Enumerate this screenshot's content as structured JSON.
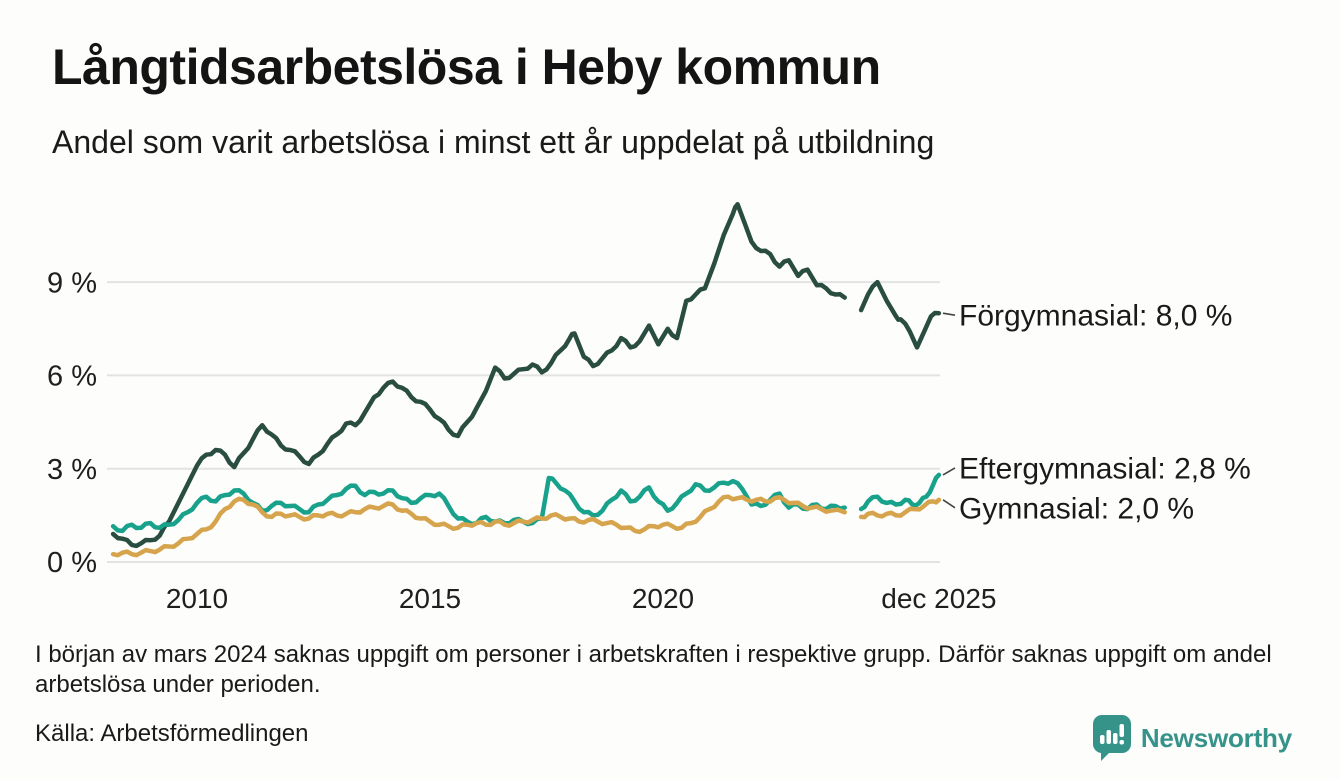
{
  "title": "Långtidsarbetslösa i Heby kommun",
  "subtitle": "Andel som varit arbetslösa i minst ett år uppdelat på utbildning",
  "footnote": "I början av mars 2024 saknas uppgift om personer i arbetskraften i respektive grupp. Därför saknas uppgift om andel arbetslösa under perioden.",
  "source": "Källa: Arbetsförmedlingen",
  "branding": {
    "logo_text": "Newsworthy",
    "logo_icon": "speech-bubble-bar-chart-icon",
    "logo_color": "#35938a"
  },
  "chart_data": {
    "type": "line",
    "title": "Långtidsarbetslösa i Heby kommun",
    "subtitle": "Andel som varit arbetslösa i minst ett år uppdelat på utbildning",
    "unit": "%",
    "grid": "horizontal",
    "legend_position": "right-end-labels",
    "gap_period": "mars 2024",
    "x_axis": {
      "range_years": [
        2008.2,
        2025.92
      ],
      "ticks": [
        {
          "year": 2010,
          "label": "2010"
        },
        {
          "year": 2015,
          "label": "2015"
        },
        {
          "year": 2020,
          "label": "2020"
        },
        {
          "year": 2025.92,
          "label": "dec 2025"
        }
      ]
    },
    "y_axis": {
      "range": [
        0,
        12
      ],
      "ticks": [
        {
          "value": 0,
          "label": "0 %"
        },
        {
          "value": 3,
          "label": "3 %"
        },
        {
          "value": 6,
          "label": "6 %"
        },
        {
          "value": 9,
          "label": "9 %"
        }
      ]
    },
    "series": [
      {
        "id": "forgymnasial",
        "name": "Förgymnasial",
        "end_label": "Förgymnasial: 8,0 %",
        "end_value": 8.0,
        "color": "#2a4d41",
        "points": [
          [
            2008.2,
            0.9
          ],
          [
            2008.4,
            0.75
          ],
          [
            2008.6,
            0.55
          ],
          [
            2008.8,
            0.6
          ],
          [
            2009.0,
            0.7
          ],
          [
            2009.2,
            0.85
          ],
          [
            2009.4,
            1.3
          ],
          [
            2009.6,
            1.9
          ],
          [
            2009.8,
            2.5
          ],
          [
            2010.0,
            3.1
          ],
          [
            2010.2,
            3.45
          ],
          [
            2010.4,
            3.6
          ],
          [
            2010.6,
            3.45
          ],
          [
            2010.8,
            3.05
          ],
          [
            2011.0,
            3.5
          ],
          [
            2011.2,
            3.95
          ],
          [
            2011.4,
            4.4
          ],
          [
            2011.6,
            4.1
          ],
          [
            2011.8,
            3.75
          ],
          [
            2012.0,
            3.6
          ],
          [
            2012.2,
            3.4
          ],
          [
            2012.4,
            3.15
          ],
          [
            2012.6,
            3.45
          ],
          [
            2012.8,
            3.8
          ],
          [
            2013.0,
            4.1
          ],
          [
            2013.2,
            4.45
          ],
          [
            2013.4,
            4.4
          ],
          [
            2013.6,
            4.8
          ],
          [
            2013.8,
            5.3
          ],
          [
            2014.0,
            5.6
          ],
          [
            2014.2,
            5.8
          ],
          [
            2014.4,
            5.6
          ],
          [
            2014.6,
            5.3
          ],
          [
            2014.8,
            5.15
          ],
          [
            2015.0,
            4.9
          ],
          [
            2015.2,
            4.6
          ],
          [
            2015.4,
            4.25
          ],
          [
            2015.6,
            4.05
          ],
          [
            2015.8,
            4.5
          ],
          [
            2016.0,
            4.95
          ],
          [
            2016.2,
            5.5
          ],
          [
            2016.4,
            6.25
          ],
          [
            2016.6,
            5.9
          ],
          [
            2016.8,
            6.05
          ],
          [
            2017.0,
            6.2
          ],
          [
            2017.2,
            6.35
          ],
          [
            2017.4,
            6.1
          ],
          [
            2017.6,
            6.4
          ],
          [
            2017.8,
            6.8
          ],
          [
            2018.0,
            7.2
          ],
          [
            2018.1,
            7.35
          ],
          [
            2018.3,
            6.6
          ],
          [
            2018.5,
            6.3
          ],
          [
            2018.7,
            6.55
          ],
          [
            2018.9,
            6.8
          ],
          [
            2019.1,
            7.2
          ],
          [
            2019.3,
            6.9
          ],
          [
            2019.5,
            7.1
          ],
          [
            2019.7,
            7.6
          ],
          [
            2019.9,
            7.0
          ],
          [
            2020.1,
            7.5
          ],
          [
            2020.3,
            7.2
          ],
          [
            2020.5,
            8.4
          ],
          [
            2020.7,
            8.6
          ],
          [
            2020.9,
            8.8
          ],
          [
            2021.1,
            9.6
          ],
          [
            2021.3,
            10.5
          ],
          [
            2021.5,
            11.2
          ],
          [
            2021.6,
            11.5
          ],
          [
            2021.75,
            10.9
          ],
          [
            2021.9,
            10.3
          ],
          [
            2022.1,
            10.0
          ],
          [
            2022.3,
            9.9
          ],
          [
            2022.5,
            9.5
          ],
          [
            2022.7,
            9.7
          ],
          [
            2022.9,
            9.2
          ],
          [
            2023.1,
            9.4
          ],
          [
            2023.3,
            8.9
          ],
          [
            2023.5,
            8.8
          ],
          [
            2023.7,
            8.6
          ],
          [
            2023.9,
            8.5
          ],
          [
            2024.05,
            null
          ],
          [
            2024.25,
            8.1
          ],
          [
            2024.4,
            8.6
          ],
          [
            2024.6,
            9.0
          ],
          [
            2024.8,
            8.4
          ],
          [
            2025.0,
            7.9
          ],
          [
            2025.1,
            7.8
          ],
          [
            2025.3,
            7.4
          ],
          [
            2025.45,
            6.9
          ],
          [
            2025.6,
            7.4
          ],
          [
            2025.75,
            7.9
          ],
          [
            2025.92,
            8.0
          ]
        ]
      },
      {
        "id": "eftergymnasial",
        "name": "Eftergymnasial",
        "end_label": "Eftergymnasial: 2,8 %",
        "end_value": 2.8,
        "color": "#18a28b",
        "points": [
          [
            2008.2,
            1.15
          ],
          [
            2008.4,
            1.0
          ],
          [
            2008.6,
            1.2
          ],
          [
            2008.8,
            1.1
          ],
          [
            2009.0,
            1.25
          ],
          [
            2009.2,
            1.1
          ],
          [
            2009.4,
            1.2
          ],
          [
            2009.6,
            1.35
          ],
          [
            2009.8,
            1.6
          ],
          [
            2010.0,
            1.9
          ],
          [
            2010.2,
            2.1
          ],
          [
            2010.4,
            1.95
          ],
          [
            2010.6,
            2.15
          ],
          [
            2010.8,
            2.3
          ],
          [
            2011.0,
            2.2
          ],
          [
            2011.2,
            1.9
          ],
          [
            2011.4,
            1.65
          ],
          [
            2011.6,
            1.8
          ],
          [
            2011.8,
            1.9
          ],
          [
            2012.0,
            1.8
          ],
          [
            2012.2,
            1.7
          ],
          [
            2012.4,
            1.6
          ],
          [
            2012.6,
            1.85
          ],
          [
            2012.8,
            2.0
          ],
          [
            2013.0,
            2.15
          ],
          [
            2013.2,
            2.35
          ],
          [
            2013.4,
            2.45
          ],
          [
            2013.6,
            2.15
          ],
          [
            2013.8,
            2.25
          ],
          [
            2014.0,
            2.2
          ],
          [
            2014.2,
            2.3
          ],
          [
            2014.4,
            2.05
          ],
          [
            2014.6,
            1.9
          ],
          [
            2014.8,
            2.05
          ],
          [
            2015.0,
            2.15
          ],
          [
            2015.2,
            2.2
          ],
          [
            2015.4,
            1.8
          ],
          [
            2015.6,
            1.4
          ],
          [
            2015.8,
            1.3
          ],
          [
            2016.0,
            1.25
          ],
          [
            2016.2,
            1.45
          ],
          [
            2016.4,
            1.3
          ],
          [
            2016.6,
            1.25
          ],
          [
            2016.8,
            1.35
          ],
          [
            2017.0,
            1.3
          ],
          [
            2017.2,
            1.25
          ],
          [
            2017.4,
            1.4
          ],
          [
            2017.55,
            2.7
          ],
          [
            2017.7,
            2.55
          ],
          [
            2017.9,
            2.3
          ],
          [
            2018.1,
            1.95
          ],
          [
            2018.3,
            1.6
          ],
          [
            2018.5,
            1.5
          ],
          [
            2018.7,
            1.65
          ],
          [
            2018.9,
            2.0
          ],
          [
            2019.1,
            2.3
          ],
          [
            2019.3,
            1.95
          ],
          [
            2019.5,
            2.1
          ],
          [
            2019.7,
            2.4
          ],
          [
            2019.9,
            1.95
          ],
          [
            2020.1,
            1.65
          ],
          [
            2020.3,
            1.9
          ],
          [
            2020.5,
            2.2
          ],
          [
            2020.7,
            2.5
          ],
          [
            2020.9,
            2.3
          ],
          [
            2021.1,
            2.4
          ],
          [
            2021.3,
            2.55
          ],
          [
            2021.5,
            2.6
          ],
          [
            2021.7,
            2.35
          ],
          [
            2021.9,
            1.85
          ],
          [
            2022.1,
            1.8
          ],
          [
            2022.3,
            2.0
          ],
          [
            2022.5,
            2.2
          ],
          [
            2022.7,
            1.75
          ],
          [
            2022.9,
            1.85
          ],
          [
            2023.1,
            1.7
          ],
          [
            2023.3,
            1.85
          ],
          [
            2023.5,
            1.7
          ],
          [
            2023.7,
            1.8
          ],
          [
            2023.9,
            1.75
          ],
          [
            2024.05,
            null
          ],
          [
            2024.25,
            1.7
          ],
          [
            2024.4,
            1.95
          ],
          [
            2024.6,
            2.1
          ],
          [
            2024.8,
            1.9
          ],
          [
            2025.0,
            1.85
          ],
          [
            2025.2,
            2.0
          ],
          [
            2025.35,
            1.85
          ],
          [
            2025.5,
            1.9
          ],
          [
            2025.65,
            2.1
          ],
          [
            2025.8,
            2.5
          ],
          [
            2025.92,
            2.8
          ]
        ]
      },
      {
        "id": "gymnasial",
        "name": "Gymnasial",
        "end_label": "Gymnasial: 2,0 %",
        "end_value": 2.0,
        "color": "#d6a44c",
        "points": [
          [
            2008.2,
            0.25
          ],
          [
            2008.4,
            0.3
          ],
          [
            2008.6,
            0.25
          ],
          [
            2008.8,
            0.3
          ],
          [
            2009.0,
            0.35
          ],
          [
            2009.2,
            0.4
          ],
          [
            2009.4,
            0.5
          ],
          [
            2009.6,
            0.6
          ],
          [
            2009.8,
            0.75
          ],
          [
            2010.0,
            0.9
          ],
          [
            2010.2,
            1.05
          ],
          [
            2010.4,
            1.3
          ],
          [
            2010.6,
            1.7
          ],
          [
            2010.8,
            1.95
          ],
          [
            2011.0,
            2.0
          ],
          [
            2011.2,
            1.85
          ],
          [
            2011.4,
            1.6
          ],
          [
            2011.6,
            1.45
          ],
          [
            2011.8,
            1.55
          ],
          [
            2012.0,
            1.5
          ],
          [
            2012.2,
            1.45
          ],
          [
            2012.4,
            1.4
          ],
          [
            2012.6,
            1.5
          ],
          [
            2012.8,
            1.55
          ],
          [
            2013.0,
            1.5
          ],
          [
            2013.2,
            1.55
          ],
          [
            2013.4,
            1.6
          ],
          [
            2013.6,
            1.7
          ],
          [
            2013.8,
            1.75
          ],
          [
            2014.0,
            1.8
          ],
          [
            2014.2,
            1.85
          ],
          [
            2014.4,
            1.65
          ],
          [
            2014.6,
            1.55
          ],
          [
            2014.8,
            1.4
          ],
          [
            2015.0,
            1.3
          ],
          [
            2015.2,
            1.2
          ],
          [
            2015.4,
            1.15
          ],
          [
            2015.6,
            1.1
          ],
          [
            2015.8,
            1.2
          ],
          [
            2016.0,
            1.25
          ],
          [
            2016.2,
            1.2
          ],
          [
            2016.4,
            1.3
          ],
          [
            2016.6,
            1.2
          ],
          [
            2016.8,
            1.25
          ],
          [
            2017.0,
            1.3
          ],
          [
            2017.2,
            1.35
          ],
          [
            2017.4,
            1.4
          ],
          [
            2017.6,
            1.5
          ],
          [
            2017.8,
            1.45
          ],
          [
            2018.0,
            1.4
          ],
          [
            2018.2,
            1.3
          ],
          [
            2018.4,
            1.35
          ],
          [
            2018.6,
            1.3
          ],
          [
            2018.8,
            1.25
          ],
          [
            2019.0,
            1.2
          ],
          [
            2019.2,
            1.1
          ],
          [
            2019.4,
            1.0
          ],
          [
            2019.6,
            1.05
          ],
          [
            2019.8,
            1.15
          ],
          [
            2020.0,
            1.2
          ],
          [
            2020.2,
            1.15
          ],
          [
            2020.4,
            1.1
          ],
          [
            2020.6,
            1.25
          ],
          [
            2020.8,
            1.45
          ],
          [
            2021.0,
            1.7
          ],
          [
            2021.2,
            1.95
          ],
          [
            2021.4,
            2.1
          ],
          [
            2021.6,
            2.05
          ],
          [
            2021.8,
            2.0
          ],
          [
            2022.0,
            2.0
          ],
          [
            2022.2,
            1.95
          ],
          [
            2022.4,
            2.05
          ],
          [
            2022.6,
            2.0
          ],
          [
            2022.8,
            1.9
          ],
          [
            2023.0,
            1.8
          ],
          [
            2023.2,
            1.75
          ],
          [
            2023.4,
            1.7
          ],
          [
            2023.6,
            1.65
          ],
          [
            2023.9,
            1.6
          ],
          [
            2024.05,
            null
          ],
          [
            2024.25,
            1.45
          ],
          [
            2024.4,
            1.55
          ],
          [
            2024.6,
            1.5
          ],
          [
            2024.8,
            1.55
          ],
          [
            2025.0,
            1.5
          ],
          [
            2025.2,
            1.6
          ],
          [
            2025.4,
            1.7
          ],
          [
            2025.6,
            1.8
          ],
          [
            2025.8,
            1.95
          ],
          [
            2025.92,
            2.0
          ]
        ]
      }
    ]
  }
}
